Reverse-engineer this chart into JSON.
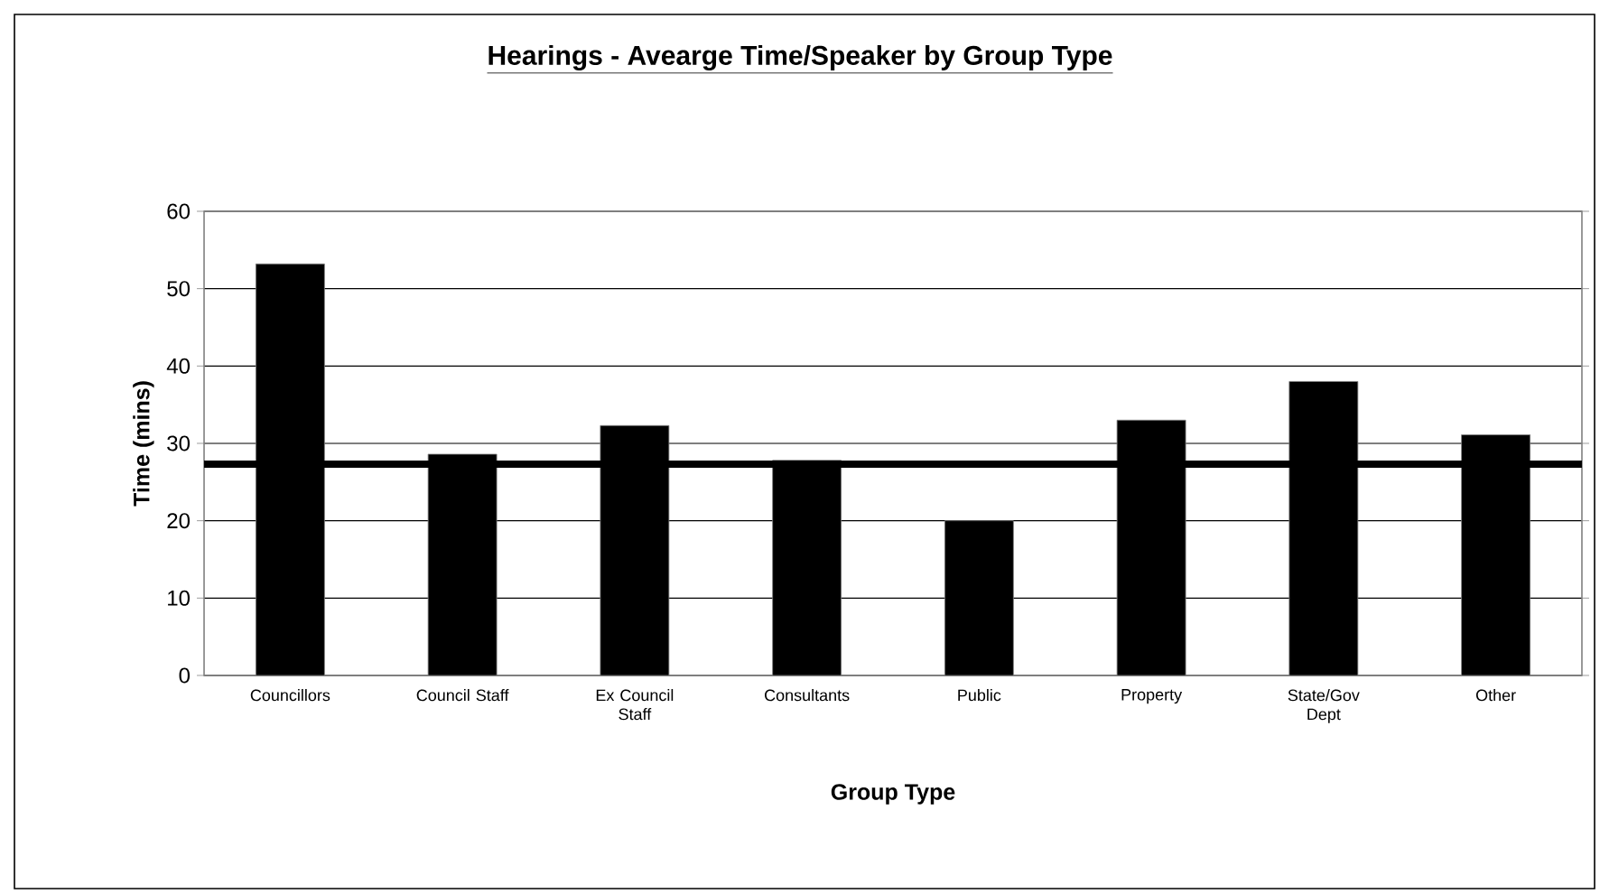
{
  "chart_data": {
    "type": "bar",
    "title": "Hearings - Avearge Time/Speaker by Group Type",
    "xlabel": "Group Type",
    "ylabel": "Time (mins)",
    "categories": [
      "Councillors",
      "Council Staff",
      "Ex Council Staff",
      "Consultants",
      "Public",
      "Property",
      "State/Gov Dept",
      "Other"
    ],
    "values": [
      53.2,
      28.6,
      32.3,
      27.8,
      20.0,
      33.0,
      38.0,
      31.1
    ],
    "color": "#000000",
    "ylim": [
      0,
      60
    ],
    "yticks": [
      0,
      10,
      20,
      30,
      40,
      50,
      60
    ],
    "grid": "y",
    "ref_lines": [
      {
        "axis": "y",
        "value": 27.3,
        "color": "#000000"
      }
    ]
  }
}
